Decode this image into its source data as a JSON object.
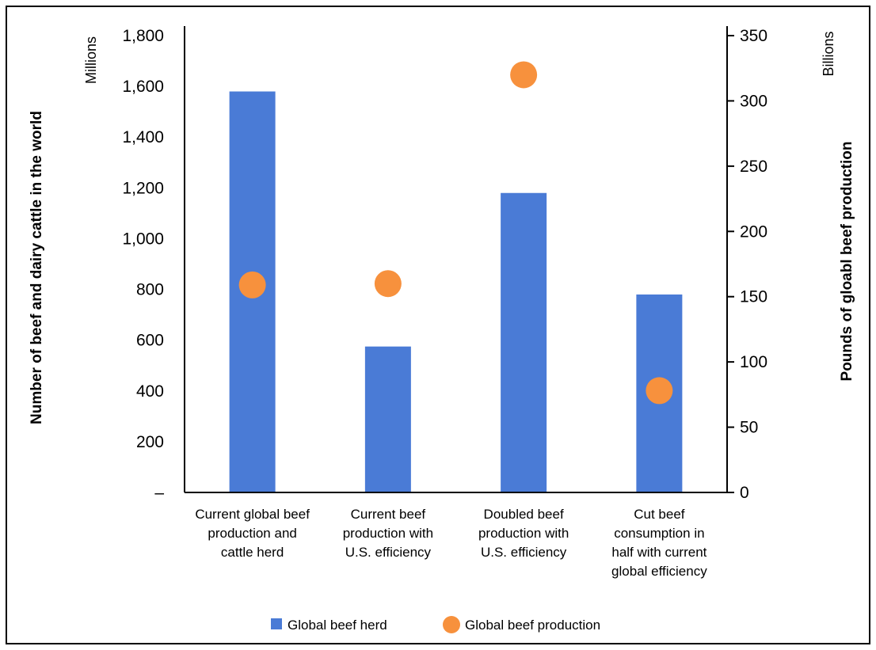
{
  "chart_data": {
    "type": "bar",
    "categories": [
      [
        "Current global beef",
        "production and",
        "cattle herd"
      ],
      [
        "Current beef",
        "production with",
        "U.S. efficiency"
      ],
      [
        "Doubled beef",
        "production with",
        "U.S. efficiency"
      ],
      [
        "Cut beef",
        "consumption in",
        "half with current",
        "global efficiency"
      ]
    ],
    "series": [
      {
        "name": "Global beef herd",
        "type": "bar",
        "axis": "left",
        "color": "#4a7bd6",
        "values": [
          1580,
          575,
          1180,
          780
        ]
      },
      {
        "name": "Global beef production",
        "type": "scatter",
        "axis": "right",
        "color": "#f7913d",
        "values": [
          159,
          160,
          320,
          78
        ]
      }
    ],
    "left_axis": {
      "label": "Number of beef and dairy cattle in the world",
      "unit": "Millions",
      "ylim": [
        0,
        1800
      ],
      "ticks": [
        0,
        200,
        400,
        600,
        800,
        1000,
        1200,
        1400,
        1600,
        1800
      ],
      "tick_labels": [
        "–",
        "200",
        "400",
        "600",
        "800",
        "1,000",
        "1,200",
        "1,400",
        "1,600",
        "1,800"
      ]
    },
    "right_axis": {
      "label": "Pounds of gloabl beef production",
      "unit": "Billions",
      "ylim": [
        0,
        350
      ],
      "ticks": [
        0,
        50,
        100,
        150,
        200,
        250,
        300,
        350
      ],
      "tick_labels": [
        "0",
        "50",
        "100",
        "150",
        "200",
        "250",
        "300",
        "350"
      ]
    },
    "grid": false,
    "legend": "bottom"
  }
}
